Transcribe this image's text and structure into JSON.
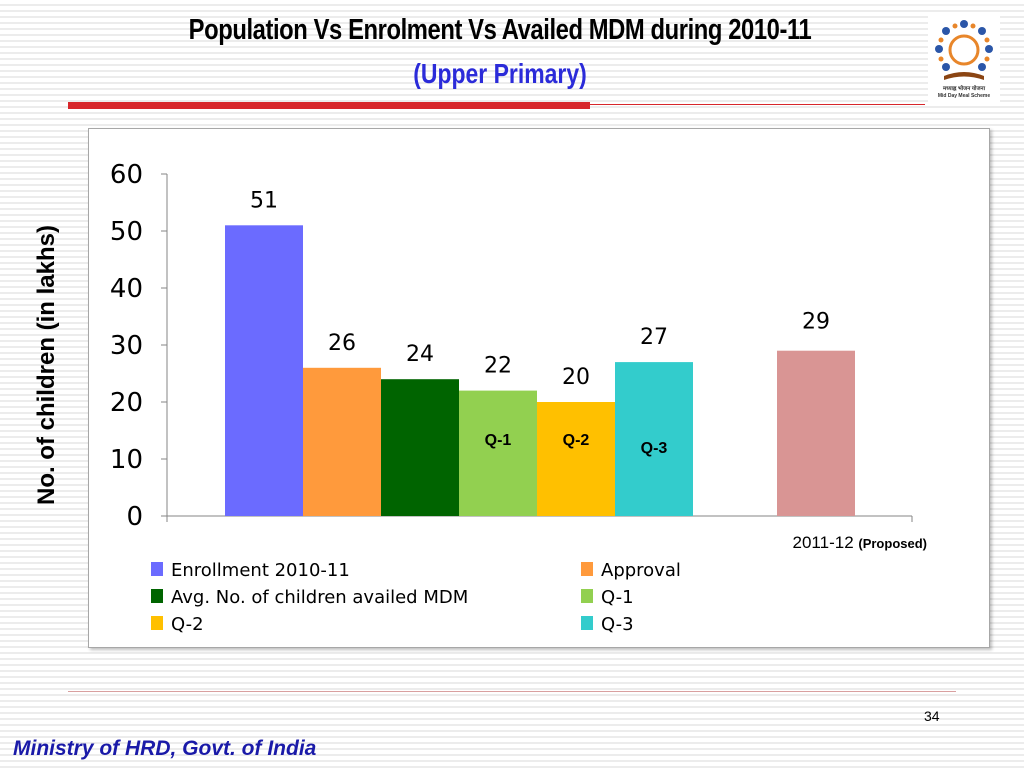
{
  "slide": {
    "title": "Population Vs Enrolment Vs Availed MDM during  2010-11",
    "subtitle": "(Upper Primary)",
    "page_number": "34",
    "footer": "Ministry of HRD, Govt. of India",
    "logo_text_1": "मध्याह्न भोजन योजना",
    "logo_text_2": "Mid Day Meal Scheme"
  },
  "colors": {
    "title": "#000000",
    "subtitle": "#2b2bd9",
    "rule": "#d7262b",
    "footer": "#1a1aa8"
  },
  "chart_data": {
    "type": "bar",
    "ylabel": "No. of children (in lakhs)",
    "ylim": [
      0,
      60
    ],
    "yticks": [
      0,
      10,
      20,
      30,
      40,
      50,
      60
    ],
    "grid": false,
    "legend_position": "bottom",
    "x_category": "2011-12",
    "x_category_note": "(Proposed)",
    "series": [
      {
        "name": "Enrollment 2010-11",
        "value": 51,
        "color": "#6b6bff"
      },
      {
        "name": "Approval",
        "value": 26,
        "color": "#ff9a3c"
      },
      {
        "name": "Avg. No. of children availed MDM",
        "value": 24,
        "color": "#006400"
      },
      {
        "name": "Q-1",
        "value": 22,
        "color": "#92d050",
        "bar_label": "Q-1"
      },
      {
        "name": "Q-2",
        "value": 20,
        "color": "#ffc000",
        "bar_label": "Q-2"
      },
      {
        "name": "Q-3",
        "value": 27,
        "color": "#33cccc",
        "bar_label": "Q-3"
      }
    ],
    "extra_bar": {
      "value": 29,
      "color": "#d99594"
    }
  }
}
